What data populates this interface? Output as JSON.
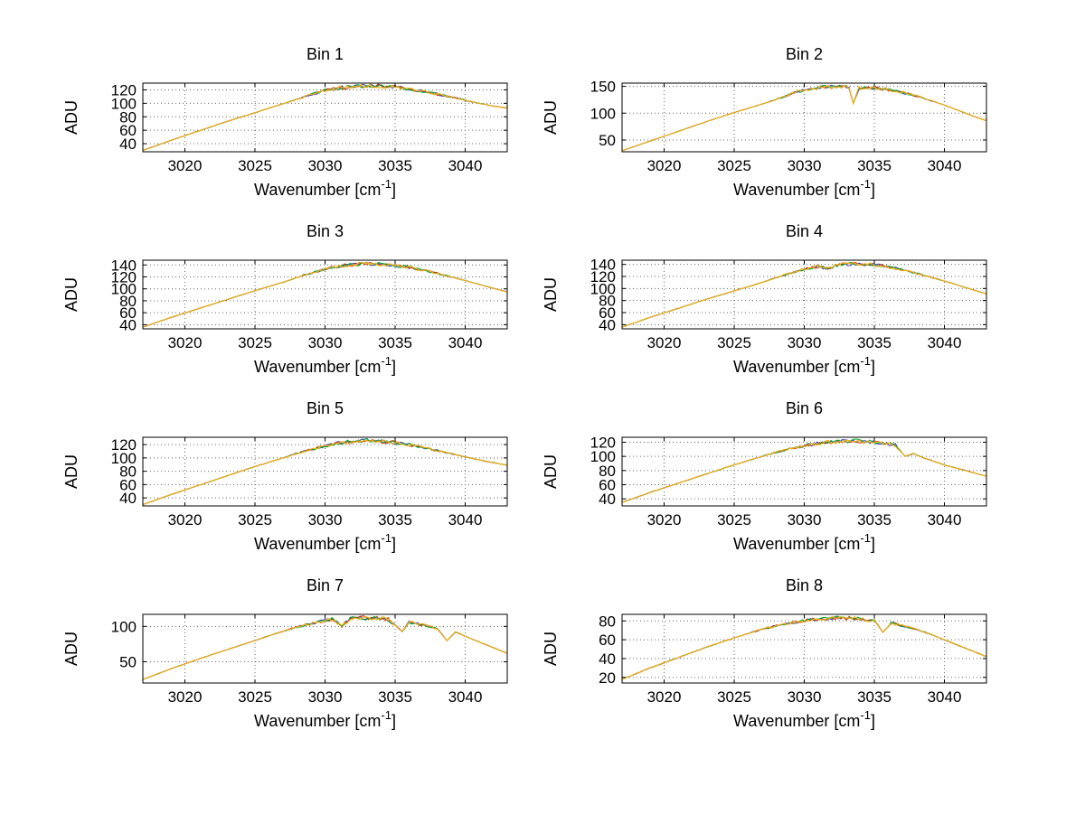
{
  "axes_labels": {
    "ylabel": "ADU",
    "xlabel_main": "Wavenumber [cm",
    "xlabel_sup": "-1",
    "xlabel_close": "]"
  },
  "axis": {
    "xlim": [
      3017,
      3043
    ],
    "xticks": [
      3020,
      3025,
      3030,
      3035,
      3040
    ]
  },
  "grid": {
    "style": "dotted",
    "color": "#666666"
  },
  "trace_colors": [
    {
      "name": "trace-blue",
      "color": "#3333bb"
    },
    {
      "name": "trace-red",
      "color": "#cc3300"
    },
    {
      "name": "trace-green",
      "color": "#00aa33"
    },
    {
      "name": "trace-yellow",
      "color": "#f3ae17"
    }
  ],
  "chart_data": [
    {
      "type": "line",
      "title": "Bin 1",
      "ylabel": "ADU",
      "xlabel": "Wavenumber [cm⁻¹]",
      "ylim": [
        28,
        130
      ],
      "yticks": [
        40,
        60,
        80,
        100,
        120
      ],
      "noise": 3.0,
      "points": [
        [
          3017,
          30
        ],
        [
          3019,
          45
        ],
        [
          3021,
          59
        ],
        [
          3023,
          73
        ],
        [
          3025,
          86
        ],
        [
          3026.5,
          96
        ],
        [
          3028,
          106
        ],
        [
          3029,
          113
        ],
        [
          3030,
          119
        ],
        [
          3031,
          123
        ],
        [
          3032,
          125
        ],
        [
          3033,
          126
        ],
        [
          3034,
          125.5
        ],
        [
          3035,
          124
        ],
        [
          3036,
          121
        ],
        [
          3037,
          117.5
        ],
        [
          3038,
          113.5
        ],
        [
          3039.5,
          107
        ],
        [
          3041,
          100
        ],
        [
          3042,
          96
        ],
        [
          3043,
          93
        ]
      ]
    },
    {
      "type": "line",
      "title": "Bin 2",
      "ylabel": "ADU",
      "xlabel": "Wavenumber [cm⁻¹]",
      "ylim": [
        28,
        156
      ],
      "yticks": [
        50,
        100,
        150
      ],
      "noise": 3.5,
      "points": [
        [
          3017,
          30
        ],
        [
          3019,
          48
        ],
        [
          3021,
          66
        ],
        [
          3023,
          84
        ],
        [
          3025,
          101
        ],
        [
          3027,
          117
        ],
        [
          3028.5,
          130
        ],
        [
          3029.5,
          140
        ],
        [
          3030.5,
          146
        ],
        [
          3031.5,
          149
        ],
        [
          3032.5,
          150
        ],
        [
          3033.2,
          148
        ],
        [
          3033.5,
          118
        ],
        [
          3033.9,
          147
        ],
        [
          3035,
          147
        ],
        [
          3036,
          144
        ],
        [
          3037,
          139
        ],
        [
          3038,
          132
        ],
        [
          3039,
          124
        ],
        [
          3040,
          115
        ],
        [
          3041,
          105
        ],
        [
          3042,
          95
        ],
        [
          3043,
          86
        ]
      ]
    },
    {
      "type": "line",
      "title": "Bin 3",
      "ylabel": "ADU",
      "xlabel": "Wavenumber [cm⁻¹]",
      "ylim": [
        33,
        148
      ],
      "yticks": [
        40,
        60,
        80,
        100,
        120,
        140
      ],
      "noise": 3.0,
      "points": [
        [
          3017,
          36
        ],
        [
          3019,
          52
        ],
        [
          3021,
          67
        ],
        [
          3023,
          82
        ],
        [
          3025,
          97
        ],
        [
          3027,
          111
        ],
        [
          3028.5,
          123
        ],
        [
          3030,
          133
        ],
        [
          3031,
          138
        ],
        [
          3032,
          141
        ],
        [
          3033,
          142
        ],
        [
          3034,
          141
        ],
        [
          3035,
          139
        ],
        [
          3036,
          136
        ],
        [
          3037,
          131.5
        ],
        [
          3038,
          126
        ],
        [
          3039.5,
          117
        ],
        [
          3041,
          107.5
        ],
        [
          3042,
          101
        ],
        [
          3043,
          95
        ]
      ]
    },
    {
      "type": "line",
      "title": "Bin 4",
      "ylabel": "ADU",
      "xlabel": "Wavenumber [cm⁻¹]",
      "ylim": [
        33,
        147
      ],
      "yticks": [
        40,
        60,
        80,
        100,
        120,
        140
      ],
      "noise": 3.0,
      "points": [
        [
          3017,
          36
        ],
        [
          3019,
          52
        ],
        [
          3021,
          67
        ],
        [
          3023,
          82
        ],
        [
          3025,
          96
        ],
        [
          3027,
          110
        ],
        [
          3028.5,
          122
        ],
        [
          3030,
          132
        ],
        [
          3031,
          137
        ],
        [
          3031.7,
          133
        ],
        [
          3032.5,
          140
        ],
        [
          3033.5,
          141
        ],
        [
          3034.5,
          140
        ],
        [
          3035.5,
          138
        ],
        [
          3036.5,
          134
        ],
        [
          3037.5,
          128
        ],
        [
          3039,
          119
        ],
        [
          3040.5,
          109
        ],
        [
          3042,
          98
        ],
        [
          3043,
          91
        ]
      ]
    },
    {
      "type": "line",
      "title": "Bin 5",
      "ylabel": "ADU",
      "xlabel": "Wavenumber [cm⁻¹]",
      "ylim": [
        28,
        131
      ],
      "yticks": [
        40,
        60,
        80,
        100,
        120
      ],
      "noise": 3.0,
      "points": [
        [
          3017,
          30
        ],
        [
          3019,
          45
        ],
        [
          3021,
          59
        ],
        [
          3023,
          73
        ],
        [
          3025,
          87
        ],
        [
          3027,
          100
        ],
        [
          3028.5,
          110
        ],
        [
          3030,
          118
        ],
        [
          3031,
          122
        ],
        [
          3032,
          125
        ],
        [
          3033,
          126
        ],
        [
          3034,
          125
        ],
        [
          3035,
          123
        ],
        [
          3036,
          120
        ],
        [
          3037,
          116
        ],
        [
          3038,
          111
        ],
        [
          3039.5,
          104
        ],
        [
          3041,
          97
        ],
        [
          3042,
          93
        ],
        [
          3043,
          89
        ]
      ]
    },
    {
      "type": "line",
      "title": "Bin 6",
      "ylabel": "ADU",
      "xlabel": "Wavenumber [cm⁻¹]",
      "ylim": [
        30,
        127
      ],
      "yticks": [
        40,
        60,
        80,
        100,
        120
      ],
      "noise": 3.0,
      "points": [
        [
          3017,
          35
        ],
        [
          3019,
          49
        ],
        [
          3021,
          62
        ],
        [
          3023,
          75
        ],
        [
          3025,
          88
        ],
        [
          3026.5,
          97
        ],
        [
          3028,
          106
        ],
        [
          3029.5,
          113
        ],
        [
          3030.5,
          117
        ],
        [
          3031.5,
          120
        ],
        [
          3032.5,
          121
        ],
        [
          3033.5,
          122
        ],
        [
          3034.5,
          121
        ],
        [
          3035.5,
          119
        ],
        [
          3036.5,
          116
        ],
        [
          3037.2,
          100
        ],
        [
          3037.8,
          104
        ],
        [
          3038.5,
          98
        ],
        [
          3040,
          88
        ],
        [
          3041.5,
          80
        ],
        [
          3043,
          72
        ]
      ]
    },
    {
      "type": "line",
      "title": "Bin 7",
      "ylabel": "ADU",
      "xlabel": "Wavenumber [cm⁻¹]",
      "ylim": [
        20,
        117
      ],
      "yticks": [
        50,
        100
      ],
      "noise": 3.0,
      "points": [
        [
          3017,
          25
        ],
        [
          3019,
          40
        ],
        [
          3021,
          54
        ],
        [
          3023,
          67
        ],
        [
          3025,
          80
        ],
        [
          3026.5,
          90
        ],
        [
          3028,
          99
        ],
        [
          3029.5,
          106
        ],
        [
          3030.5,
          110
        ],
        [
          3031.2,
          100
        ],
        [
          3031.8,
          111
        ],
        [
          3032.5,
          112
        ],
        [
          3033.5,
          112
        ],
        [
          3034.5,
          110
        ],
        [
          3035.5,
          93
        ],
        [
          3036,
          106
        ],
        [
          3037,
          102
        ],
        [
          3038,
          97
        ],
        [
          3038.7,
          80
        ],
        [
          3039.3,
          92
        ],
        [
          3040.5,
          82
        ],
        [
          3041.5,
          74
        ],
        [
          3042.5,
          66
        ],
        [
          3043,
          62
        ]
      ]
    },
    {
      "type": "line",
      "title": "Bin 8",
      "ylabel": "ADU",
      "xlabel": "Wavenumber [cm⁻¹]",
      "ylim": [
        14,
        87
      ],
      "yticks": [
        20,
        40,
        60,
        80
      ],
      "noise": 2.0,
      "points": [
        [
          3017,
          18
        ],
        [
          3019,
          30
        ],
        [
          3021,
          41
        ],
        [
          3023,
          52
        ],
        [
          3025,
          62
        ],
        [
          3026.5,
          69
        ],
        [
          3028,
          75
        ],
        [
          3029.5,
          79
        ],
        [
          3031,
          82
        ],
        [
          3032,
          83
        ],
        [
          3033,
          83
        ],
        [
          3034,
          82
        ],
        [
          3035,
          80
        ],
        [
          3035.6,
          68
        ],
        [
          3036.2,
          78
        ],
        [
          3037,
          75
        ],
        [
          3038,
          71
        ],
        [
          3039,
          66
        ],
        [
          3040,
          60
        ],
        [
          3041,
          54
        ],
        [
          3042,
          48
        ],
        [
          3043,
          42
        ]
      ]
    }
  ]
}
